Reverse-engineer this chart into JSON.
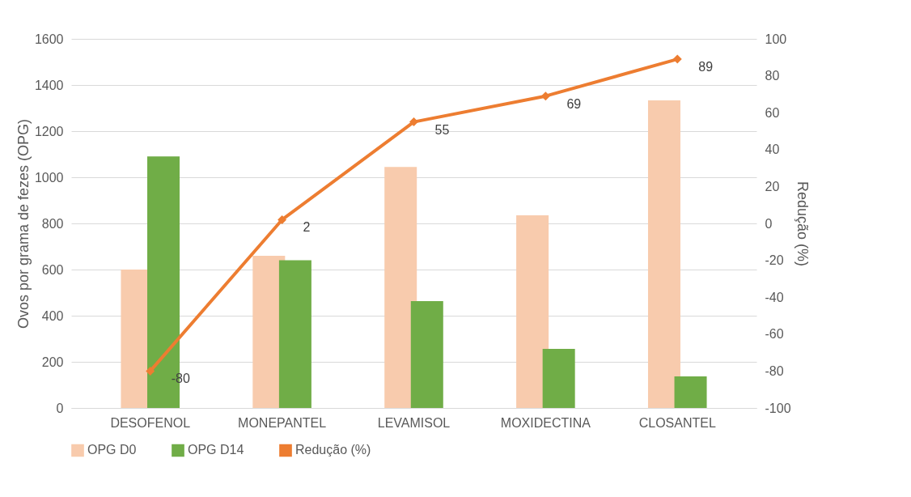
{
  "chart_data": {
    "type": "bar",
    "ylabel": "Ovos por grama de fezes (OPG)",
    "y2label": "Redução (%)",
    "categories": [
      "DESOFENOL",
      "MONEPANTEL",
      "LEVAMISOL",
      "MOXIDECTINA",
      "CLOSANTEL"
    ],
    "series": [
      {
        "name": "OPG D0",
        "color": "#f8cbad",
        "values": [
          600,
          660,
          1045,
          835,
          1333
        ]
      },
      {
        "name": "OPG D14",
        "color": "#70ad47",
        "values": [
          1090,
          640,
          463,
          256,
          137
        ]
      },
      {
        "name": "Redução (%)",
        "type": "line",
        "axis": "y2",
        "color": "#ed7d31",
        "marker": "diamond",
        "values": [
          -80,
          2,
          55,
          69,
          89
        ],
        "value_labels": [
          "-80",
          "2",
          "55",
          "69",
          "89"
        ]
      }
    ],
    "ylim": [
      0,
      1600
    ],
    "yticks": [
      0,
      200,
      400,
      600,
      800,
      1000,
      1200,
      1400,
      1600
    ],
    "y2lim": [
      -100,
      100
    ],
    "y2ticks": [
      -100,
      -80,
      -60,
      -40,
      -20,
      0,
      20,
      40,
      60,
      80,
      100
    ],
    "grid": "y",
    "legend": "bottom"
  }
}
